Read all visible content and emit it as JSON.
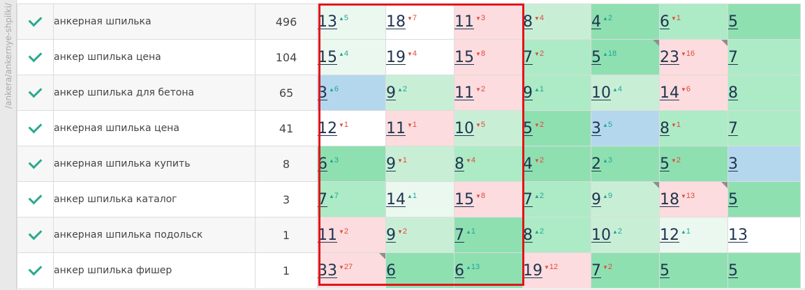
{
  "sidebar": {
    "url_path": "/ankera/ankernye-shpilki/"
  },
  "table": {
    "rows": [
      {
        "keyword": "анкерная шпилька",
        "volume": "496",
        "positions": [
          {
            "v": "13",
            "d": "5",
            "dir": "up",
            "bg": "vl"
          },
          {
            "v": "18",
            "d": "7",
            "dir": "down",
            "bg": "wh"
          },
          {
            "v": "11",
            "d": "3",
            "dir": "down",
            "bg": "pk"
          },
          {
            "v": "8",
            "d": "4",
            "dir": "down",
            "bg": "lg"
          },
          {
            "v": "4",
            "d": "2",
            "dir": "up",
            "bg": "dg"
          },
          {
            "v": "6",
            "d": "1",
            "dir": "down",
            "bg": "mg"
          },
          {
            "v": "5",
            "d": "",
            "dir": "",
            "bg": "dg"
          }
        ]
      },
      {
        "keyword": "анкер шпилька цена",
        "volume": "104",
        "positions": [
          {
            "v": "15",
            "d": "4",
            "dir": "up",
            "bg": "vl"
          },
          {
            "v": "19",
            "d": "4",
            "dir": "down",
            "bg": "wh"
          },
          {
            "v": "15",
            "d": "8",
            "dir": "down",
            "bg": "pk"
          },
          {
            "v": "7",
            "d": "2",
            "dir": "down",
            "bg": "mg"
          },
          {
            "v": "5",
            "d": "18",
            "dir": "up",
            "bg": "dg",
            "flag": true
          },
          {
            "v": "23",
            "d": "16",
            "dir": "down",
            "bg": "pk",
            "flag": true
          },
          {
            "v": "7",
            "d": "",
            "dir": "",
            "bg": "mg"
          }
        ]
      },
      {
        "keyword": "анкер шпилька для бетона",
        "volume": "65",
        "positions": [
          {
            "v": "3",
            "d": "6",
            "dir": "up",
            "bg": "bl"
          },
          {
            "v": "9",
            "d": "2",
            "dir": "up",
            "bg": "lg"
          },
          {
            "v": "11",
            "d": "2",
            "dir": "down",
            "bg": "pk"
          },
          {
            "v": "9",
            "d": "1",
            "dir": "up",
            "bg": "mg"
          },
          {
            "v": "10",
            "d": "4",
            "dir": "up",
            "bg": "lg"
          },
          {
            "v": "14",
            "d": "6",
            "dir": "down",
            "bg": "pk"
          },
          {
            "v": "8",
            "d": "",
            "dir": "",
            "bg": "mg"
          }
        ]
      },
      {
        "keyword": "анкерная шпилька цена",
        "volume": "41",
        "positions": [
          {
            "v": "12",
            "d": "1",
            "dir": "down",
            "bg": "wh"
          },
          {
            "v": "11",
            "d": "1",
            "dir": "down",
            "bg": "pk"
          },
          {
            "v": "10",
            "d": "5",
            "dir": "down",
            "bg": "lg"
          },
          {
            "v": "5",
            "d": "2",
            "dir": "down",
            "bg": "dg"
          },
          {
            "v": "3",
            "d": "5",
            "dir": "up",
            "bg": "bl"
          },
          {
            "v": "8",
            "d": "1",
            "dir": "down",
            "bg": "mg"
          },
          {
            "v": "7",
            "d": "",
            "dir": "",
            "bg": "mg"
          }
        ]
      },
      {
        "keyword": "анкерная шпилька купить",
        "volume": "8",
        "positions": [
          {
            "v": "6",
            "d": "3",
            "dir": "up",
            "bg": "dg"
          },
          {
            "v": "9",
            "d": "1",
            "dir": "down",
            "bg": "lg"
          },
          {
            "v": "8",
            "d": "4",
            "dir": "down",
            "bg": "mg"
          },
          {
            "v": "4",
            "d": "2",
            "dir": "down",
            "bg": "dg"
          },
          {
            "v": "2",
            "d": "3",
            "dir": "up",
            "bg": "dg"
          },
          {
            "v": "5",
            "d": "2",
            "dir": "down",
            "bg": "dg"
          },
          {
            "v": "3",
            "d": "",
            "dir": "",
            "bg": "bl"
          }
        ]
      },
      {
        "keyword": "анкер шпилька каталог",
        "volume": "3",
        "positions": [
          {
            "v": "7",
            "d": "7",
            "dir": "up",
            "bg": "mg"
          },
          {
            "v": "14",
            "d": "1",
            "dir": "up",
            "bg": "vl"
          },
          {
            "v": "15",
            "d": "8",
            "dir": "down",
            "bg": "pk"
          },
          {
            "v": "7",
            "d": "2",
            "dir": "up",
            "bg": "mg"
          },
          {
            "v": "9",
            "d": "9",
            "dir": "up",
            "bg": "lg",
            "flag": true
          },
          {
            "v": "18",
            "d": "13",
            "dir": "down",
            "bg": "pk",
            "flag": true
          },
          {
            "v": "5",
            "d": "",
            "dir": "",
            "bg": "dg"
          }
        ]
      },
      {
        "keyword": "анкерная шпилька подольск",
        "volume": "1",
        "positions": [
          {
            "v": "11",
            "d": "2",
            "dir": "down",
            "bg": "pk"
          },
          {
            "v": "9",
            "d": "2",
            "dir": "down",
            "bg": "lg"
          },
          {
            "v": "7",
            "d": "1",
            "dir": "up",
            "bg": "dg"
          },
          {
            "v": "8",
            "d": "2",
            "dir": "up",
            "bg": "mg"
          },
          {
            "v": "10",
            "d": "2",
            "dir": "up",
            "bg": "lg"
          },
          {
            "v": "12",
            "d": "1",
            "dir": "up",
            "bg": "vl"
          },
          {
            "v": "13",
            "d": "",
            "dir": "",
            "bg": "wh"
          }
        ]
      },
      {
        "keyword": "анкер шпилька фишер",
        "volume": "1",
        "positions": [
          {
            "v": "33",
            "d": "27",
            "dir": "down",
            "bg": "pk",
            "flag": true
          },
          {
            "v": "6",
            "d": "",
            "dir": "",
            "bg": "dg"
          },
          {
            "v": "6",
            "d": "13",
            "dir": "up",
            "bg": "dg"
          },
          {
            "v": "19",
            "d": "12",
            "dir": "down",
            "bg": "pk"
          },
          {
            "v": "7",
            "d": "2",
            "dir": "down",
            "bg": "dg"
          },
          {
            "v": "5",
            "d": "",
            "dir": "",
            "bg": "dg"
          },
          {
            "v": "5",
            "d": "",
            "dir": "",
            "bg": "dg"
          }
        ]
      }
    ]
  },
  "highlight": {
    "columns": "1-3",
    "color": "#e2131b"
  },
  "colors": {
    "check": "#2aa98f",
    "delta_up": "#22a693",
    "delta_down": "#e04a3c",
    "position_text": "#1f3350"
  }
}
